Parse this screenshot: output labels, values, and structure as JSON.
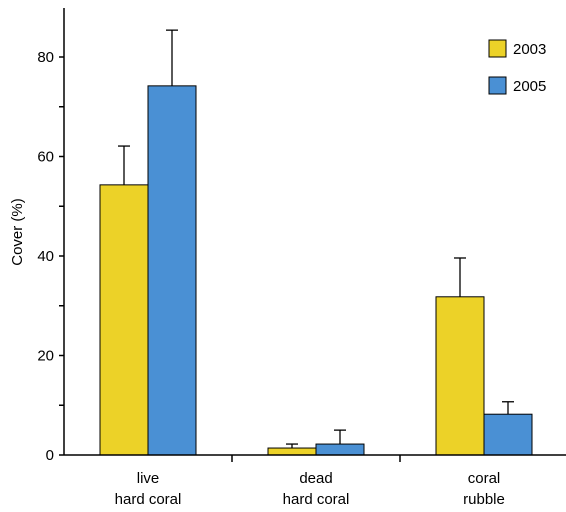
{
  "chart_data": {
    "type": "bar",
    "ylabel": "Cover (%)",
    "ylim": [
      0,
      90
    ],
    "yticks": [
      0,
      20,
      40,
      60,
      80
    ],
    "categories": [
      {
        "lines": [
          "live",
          "hard coral"
        ]
      },
      {
        "lines": [
          "dead",
          "hard coral"
        ]
      },
      {
        "lines": [
          "coral",
          "rubble"
        ]
      }
    ],
    "series": [
      {
        "name": "2003",
        "color": "#ecd228",
        "values": [
          54.3,
          1.4,
          31.8
        ],
        "errors": [
          7.8,
          0.8,
          7.8
        ]
      },
      {
        "name": "2005",
        "color": "#4a90d4",
        "values": [
          74.2,
          2.2,
          8.2
        ],
        "errors": [
          11.2,
          2.8,
          2.5
        ]
      }
    ],
    "legend_position": "top-right",
    "error_bars": "upper"
  }
}
